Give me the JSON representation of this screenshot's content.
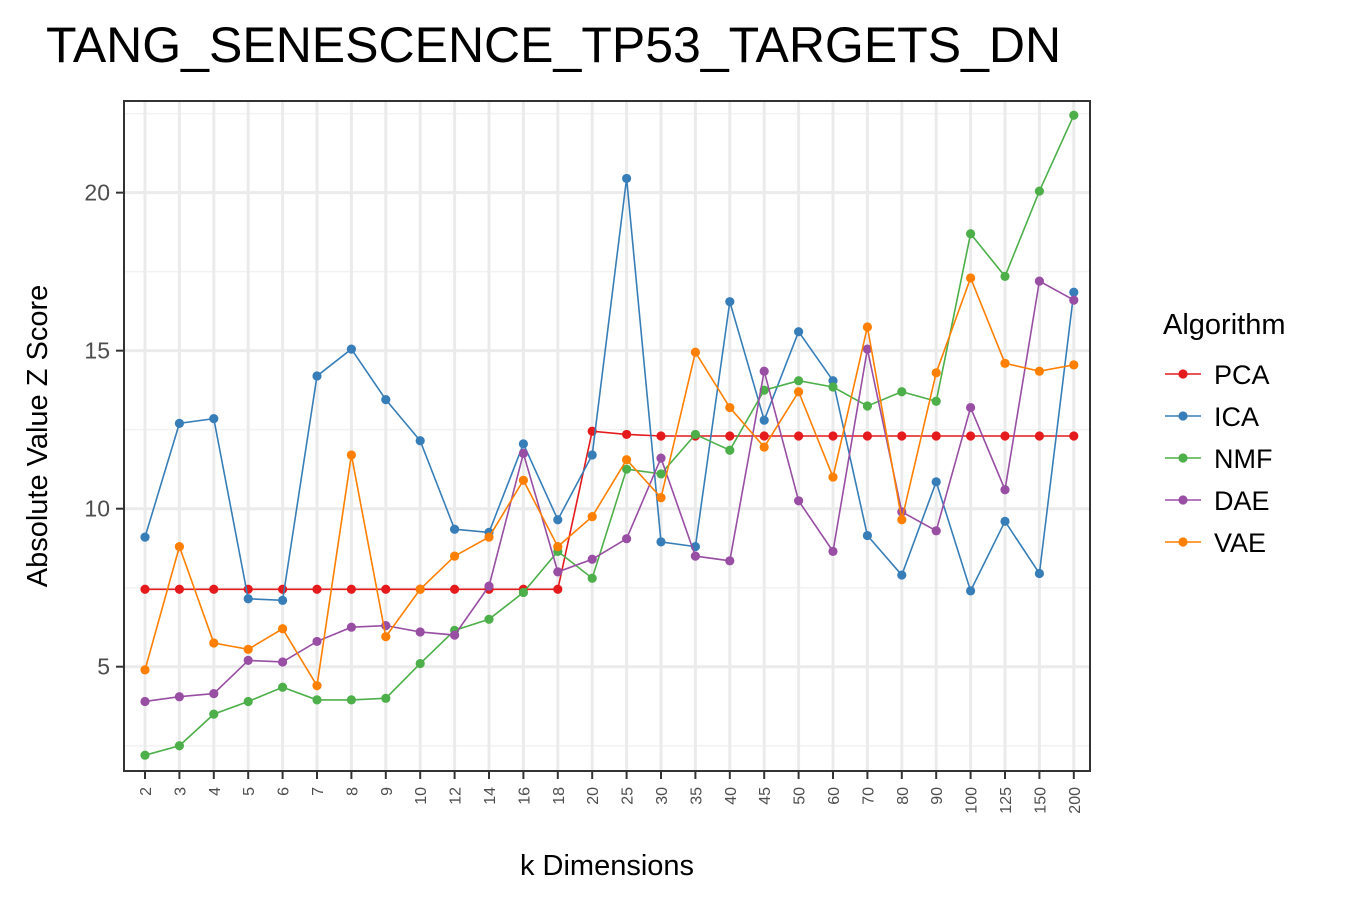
{
  "chart_data": {
    "type": "line",
    "title": "TANG_SENESCENCE_TP53_TARGETS_DN",
    "xlabel": "k Dimensions",
    "ylabel": "Absolute Value Z Score",
    "categories": [
      "2",
      "3",
      "4",
      "5",
      "6",
      "7",
      "8",
      "9",
      "10",
      "12",
      "14",
      "16",
      "18",
      "20",
      "25",
      "30",
      "35",
      "40",
      "45",
      "50",
      "60",
      "70",
      "80",
      "90",
      "100",
      "125",
      "150",
      "200"
    ],
    "ylim": [
      1.7,
      22.9
    ],
    "yticks": [
      5,
      10,
      15,
      20
    ],
    "grid": true,
    "legend": {
      "title": "Algorithm",
      "position": "right"
    },
    "series": [
      {
        "name": "PCA",
        "color": "#E41A1C",
        "values": [
          7.45,
          7.45,
          7.45,
          7.45,
          7.45,
          7.45,
          7.45,
          7.45,
          7.45,
          7.45,
          7.45,
          7.45,
          7.45,
          12.45,
          12.35,
          12.3,
          12.3,
          12.3,
          12.3,
          12.3,
          12.3,
          12.3,
          12.3,
          12.3,
          12.3,
          12.3,
          12.3,
          12.3
        ]
      },
      {
        "name": "ICA",
        "color": "#377EB8",
        "values": [
          9.1,
          12.7,
          12.85,
          7.15,
          7.1,
          14.2,
          15.05,
          13.45,
          12.15,
          9.35,
          9.25,
          12.05,
          9.65,
          11.7,
          20.45,
          8.95,
          8.8,
          16.55,
          12.8,
          15.6,
          14.05,
          9.15,
          7.9,
          10.85,
          7.4,
          9.6,
          7.95,
          16.85
        ]
      },
      {
        "name": "NMF",
        "color": "#4DAF4A",
        "values": [
          2.2,
          2.5,
          3.5,
          3.9,
          4.35,
          3.95,
          3.95,
          4.0,
          5.1,
          6.15,
          6.5,
          7.35,
          8.65,
          7.8,
          11.25,
          11.1,
          12.35,
          11.85,
          13.75,
          14.05,
          13.85,
          13.25,
          13.7,
          13.4,
          18.7,
          17.35,
          20.05,
          22.45
        ]
      },
      {
        "name": "DAE",
        "color": "#984EA3",
        "values": [
          3.9,
          4.05,
          4.15,
          5.2,
          5.15,
          5.8,
          6.25,
          6.3,
          6.1,
          6.0,
          7.55,
          11.75,
          8.0,
          8.4,
          9.05,
          11.6,
          8.5,
          8.35,
          14.35,
          10.25,
          8.65,
          15.05,
          9.9,
          9.3,
          13.2,
          10.6,
          17.2,
          16.6
        ]
      },
      {
        "name": "VAE",
        "color": "#FF7F00",
        "values": [
          4.9,
          8.8,
          5.75,
          5.55,
          6.2,
          4.4,
          11.7,
          5.95,
          7.45,
          8.5,
          9.1,
          10.9,
          8.8,
          9.75,
          11.55,
          10.35,
          14.95,
          13.2,
          11.95,
          13.7,
          11.0,
          15.75,
          9.65,
          14.3,
          17.3,
          14.6,
          14.35,
          14.55
        ]
      }
    ]
  }
}
